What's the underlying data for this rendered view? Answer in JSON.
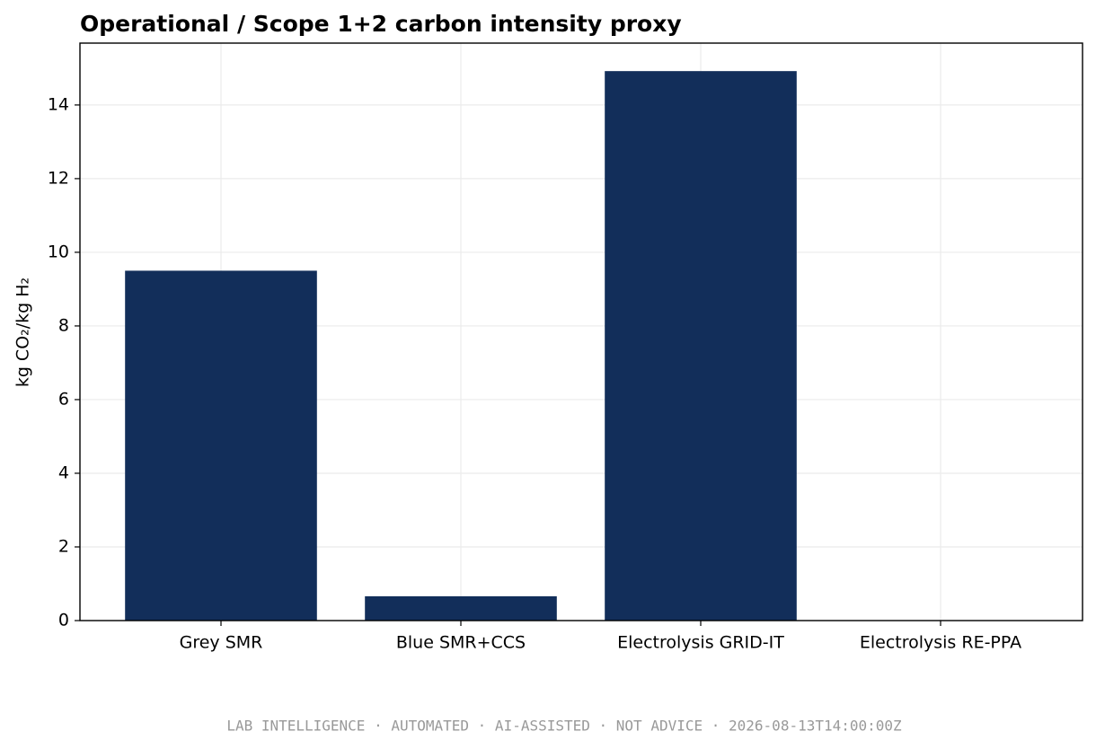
{
  "chart_data": {
    "type": "bar",
    "title": "Operational / Scope 1+2 carbon intensity proxy",
    "y_label": "kg CO₂/kg H₂",
    "categories": [
      "Grey SMR",
      "Blue SMR+CCS",
      "Electrolysis GRID-IT",
      "Electrolysis RE-PPA"
    ],
    "values": [
      9.5,
      0.66,
      14.92,
      0
    ],
    "color": "#122e5a",
    "ylim": [
      0,
      15.68
    ],
    "yticks": [
      0,
      2,
      4,
      6,
      8,
      10,
      12,
      14
    ],
    "grid": true
  },
  "footer": "LAB INTELLIGENCE · AUTOMATED · AI-ASSISTED · NOT ADVICE · 2026-08-13T14:00:00Z"
}
